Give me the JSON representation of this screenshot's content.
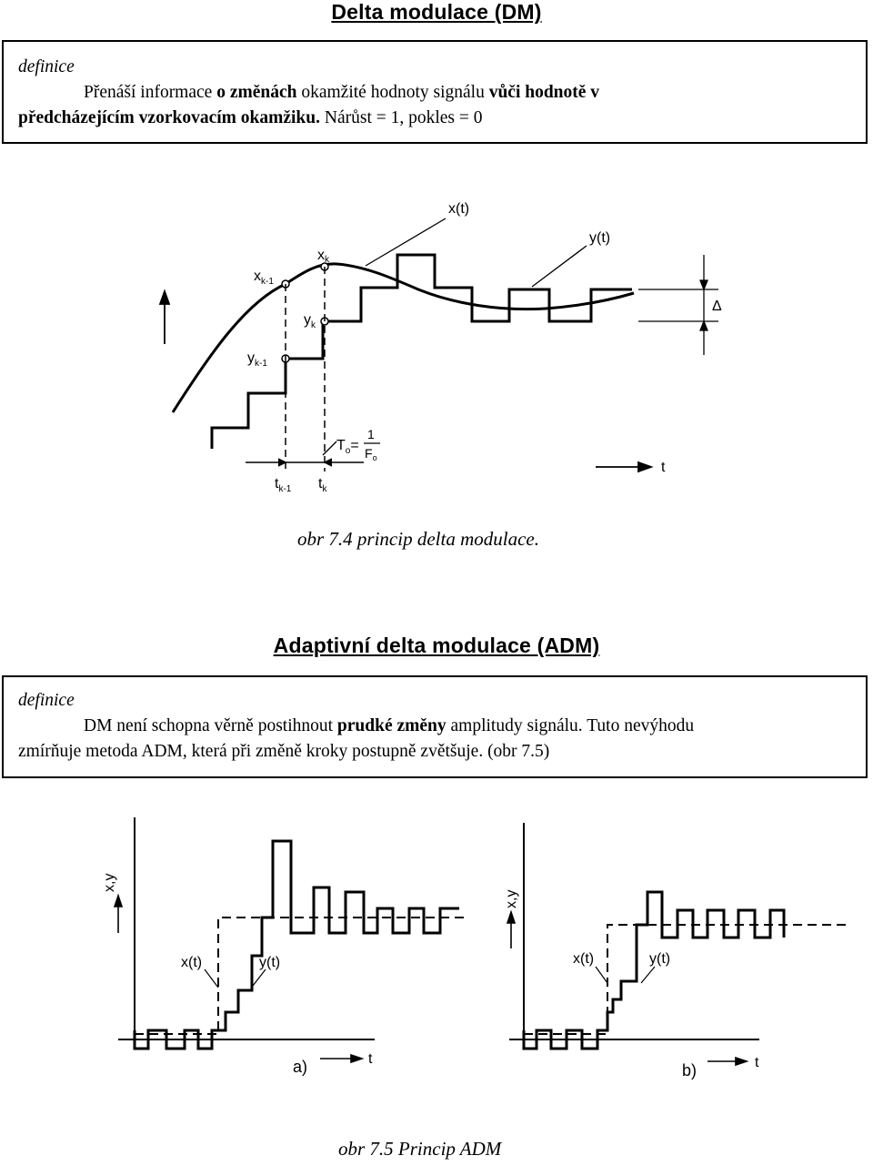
{
  "dm": {
    "title": "Delta modulace (DM)",
    "definition_label": "definice",
    "text": {
      "p1": "Přenáší informace ",
      "b1": "o změnách",
      "p2": " okamžité hodnoty signálu ",
      "b2": "vůči hodnotě v",
      "b3": "předcházejícím vzorkovacím okamžiku.",
      "p3": " Nárůst = 1, pokles = 0"
    }
  },
  "figure1": {
    "labels": {
      "x_t": "x(t)",
      "y_t": "y(t)",
      "xk_x": "x",
      "xk_sub": "k",
      "xk1_x": "x",
      "xk1_sub": "k-1",
      "yk_y": "y",
      "yk_sub": "k",
      "yk1_y": "y",
      "yk1_sub": "k-1",
      "delta": "Δ",
      "t": "t",
      "tk1_t": "t",
      "tk1_sub": "k-1",
      "tk_t": "t",
      "tk_sub": "k",
      "T0_T": "T",
      "T0_sub": "o",
      "T0_eq": "=",
      "T0_num": "1",
      "T0_den": "F",
      "T0_den_sub": "o"
    },
    "caption": "obr 7.4 princip delta modulace."
  },
  "adm": {
    "title": "Adaptivní delta modulace (ADM)",
    "definition_label": "definice",
    "text": {
      "p1": "DM není schopna věrně postihnout ",
      "b1": "prudké změny",
      "p2": " amplitudy signálu. Tuto nevýhodu",
      "p3": "zmírňuje metoda ADM, která při změně kroky postupně zvětšuje. (obr 7.5)"
    }
  },
  "figure2": {
    "labels": {
      "xy_left": "x,y",
      "xt_left": "x(t)",
      "yt_left": "y(t)",
      "t_left": "t",
      "panel_a": "a)",
      "xy_right": "x,y",
      "xt_right": "x(t)",
      "yt_right": "y(t)",
      "t_right": "t",
      "panel_b": "b)"
    },
    "caption": "obr 7.5  Princip ADM"
  }
}
